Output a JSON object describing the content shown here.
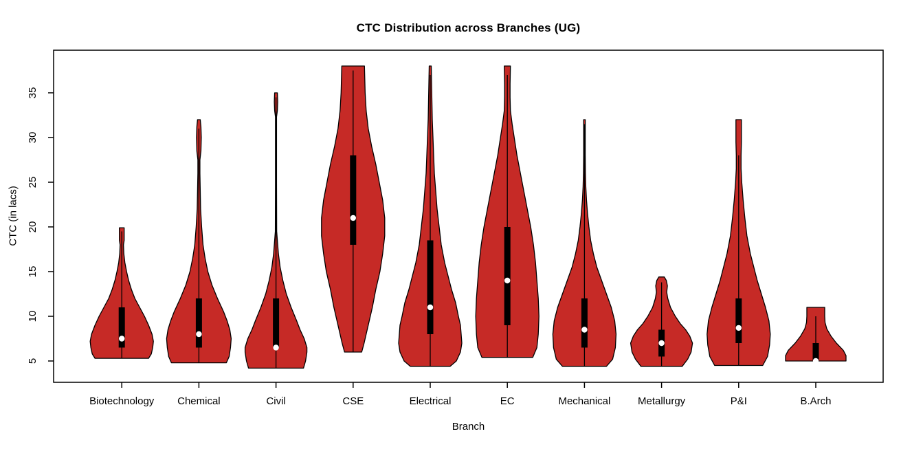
{
  "title": "CTC Distribution across Branches (UG)",
  "chart_data": {
    "type": "violin",
    "title": "CTC Distribution across Branches (UG)",
    "xlabel": "Branch",
    "ylabel": "CTC (in lacs)",
    "categories": [
      "Biotechnology",
      "Chemical",
      "Civil",
      "CSE",
      "Electrical",
      "EC",
      "Mechanical",
      "Metallurgy",
      "P&I",
      "B.Arch"
    ],
    "yticks": [
      5,
      10,
      15,
      20,
      25,
      30,
      35
    ],
    "ylim": [
      2.6,
      39.8
    ],
    "grid": false,
    "legend": "none",
    "fill_color": "#C62A26",
    "outline_color": "#000000",
    "box_color": "#000000",
    "median_color": "#ffffff",
    "violins": [
      {
        "name": "Biotechnology",
        "min": 5.3,
        "q1": 6.5,
        "median": 7.5,
        "q3": 11,
        "max": 20,
        "line_top": 19.5,
        "profile": [
          [
            5.3,
            39
          ],
          [
            5.8,
            43
          ],
          [
            6.5,
            45
          ],
          [
            7.2,
            46
          ],
          [
            8,
            44
          ],
          [
            9,
            39
          ],
          [
            10,
            33
          ],
          [
            11,
            26
          ],
          [
            12,
            19
          ],
          [
            13,
            14
          ],
          [
            14,
            10
          ],
          [
            15,
            7
          ],
          [
            16,
            4.5
          ],
          [
            17,
            3
          ],
          [
            18,
            2.5
          ],
          [
            18.5,
            3.5
          ],
          [
            19.9,
            3.5
          ]
        ]
      },
      {
        "name": "Chemical",
        "min": 4.8,
        "q1": 6.5,
        "median": 8,
        "q3": 12,
        "max": 32,
        "line_top": 31,
        "profile": [
          [
            4.8,
            40
          ],
          [
            5.5,
            44
          ],
          [
            6.5,
            46
          ],
          [
            7.5,
            47
          ],
          [
            8.5,
            45
          ],
          [
            9.5,
            41
          ],
          [
            10.5,
            36
          ],
          [
            12,
            27
          ],
          [
            13.5,
            19
          ],
          [
            15,
            13
          ],
          [
            16.5,
            9
          ],
          [
            18,
            6
          ],
          [
            20,
            4
          ],
          [
            22,
            2.5
          ],
          [
            24,
            2
          ],
          [
            26,
            1.5
          ],
          [
            27.5,
            1.5
          ],
          [
            28.5,
            3
          ],
          [
            30,
            3.5
          ],
          [
            31.2,
            3
          ],
          [
            32,
            2
          ]
        ]
      },
      {
        "name": "Civil",
        "min": 4.2,
        "q1": 6.5,
        "median": 6.5,
        "q3": 12,
        "max": 35,
        "line_top": 34.5,
        "profile": [
          [
            4.2,
            40
          ],
          [
            5,
            43
          ],
          [
            6,
            45
          ],
          [
            6.5,
            45
          ],
          [
            7.5,
            41
          ],
          [
            8.5,
            35
          ],
          [
            9.5,
            30
          ],
          [
            11,
            22
          ],
          [
            12.5,
            15
          ],
          [
            14,
            10
          ],
          [
            15.5,
            6
          ],
          [
            17,
            3.5
          ],
          [
            18.5,
            2
          ],
          [
            19.5,
            1
          ],
          [
            25,
            0.8
          ],
          [
            32.3,
            0.8
          ],
          [
            33,
            2
          ],
          [
            34,
            2.5
          ],
          [
            35,
            2
          ]
        ]
      },
      {
        "name": "CSE",
        "min": 6,
        "q1": 18,
        "median": 21,
        "q3": 28,
        "max": 38,
        "line_top": 37.5,
        "profile": [
          [
            6,
            12.5
          ],
          [
            7,
            16
          ],
          [
            9,
            22
          ],
          [
            11,
            28
          ],
          [
            13,
            33
          ],
          [
            15,
            39
          ],
          [
            17,
            43
          ],
          [
            19,
            46
          ],
          [
            21,
            46
          ],
          [
            23,
            43
          ],
          [
            25,
            38
          ],
          [
            27,
            33
          ],
          [
            29,
            27
          ],
          [
            31,
            22
          ],
          [
            33,
            19
          ],
          [
            35,
            17.5
          ],
          [
            38,
            16.5
          ]
        ]
      },
      {
        "name": "Electrical",
        "min": 4.4,
        "q1": 8,
        "median": 11,
        "q3": 18.5,
        "max": 38,
        "line_top": 37,
        "profile": [
          [
            4.4,
            29
          ],
          [
            5,
            38
          ],
          [
            6,
            44
          ],
          [
            7,
            46
          ],
          [
            8,
            45
          ],
          [
            9,
            44
          ],
          [
            10,
            41
          ],
          [
            11.5,
            37
          ],
          [
            13,
            31
          ],
          [
            14.5,
            26
          ],
          [
            16,
            21
          ],
          [
            18,
            16
          ],
          [
            20,
            13
          ],
          [
            22,
            10
          ],
          [
            24,
            8
          ],
          [
            26,
            6
          ],
          [
            28,
            5
          ],
          [
            30,
            4
          ],
          [
            32,
            3
          ],
          [
            34,
            2.5
          ],
          [
            36,
            2
          ],
          [
            38,
            1.5
          ]
        ]
      },
      {
        "name": "EC",
        "min": 5.4,
        "q1": 9,
        "median": 14,
        "q3": 20,
        "max": 38,
        "line_top": 37,
        "profile": [
          [
            5.4,
            37
          ],
          [
            6.5,
            43
          ],
          [
            8,
            45
          ],
          [
            10,
            46
          ],
          [
            12,
            45
          ],
          [
            14,
            43
          ],
          [
            16,
            41
          ],
          [
            18,
            38
          ],
          [
            20,
            34
          ],
          [
            22,
            29
          ],
          [
            24,
            24
          ],
          [
            26,
            19
          ],
          [
            28,
            14
          ],
          [
            30,
            10
          ],
          [
            31.5,
            7
          ],
          [
            33,
            4.5
          ],
          [
            34.5,
            4
          ],
          [
            36,
            4
          ],
          [
            38,
            4.5
          ]
        ]
      },
      {
        "name": "Mechanical",
        "min": 4.4,
        "q1": 6.5,
        "median": 8.5,
        "q3": 12,
        "max": 32,
        "line_top": 31.5,
        "profile": [
          [
            4.4,
            32
          ],
          [
            5.2,
            41
          ],
          [
            6.5,
            45
          ],
          [
            8,
            46
          ],
          [
            9.5,
            44
          ],
          [
            11,
            39
          ],
          [
            12.5,
            32
          ],
          [
            14,
            25
          ],
          [
            15.5,
            18
          ],
          [
            17,
            13
          ],
          [
            18.5,
            9
          ],
          [
            20,
            6.5
          ],
          [
            21.5,
            4.5
          ],
          [
            23,
            3
          ],
          [
            24.5,
            2
          ],
          [
            26,
            1.5
          ],
          [
            28,
            1.2
          ],
          [
            30,
            1.2
          ],
          [
            32,
            1.2
          ]
        ]
      },
      {
        "name": "Metallurgy",
        "min": 4.4,
        "q1": 5.5,
        "median": 7,
        "q3": 8.5,
        "max": 14.4,
        "line_top": 13.8,
        "profile": [
          [
            4.4,
            30
          ],
          [
            5.2,
            38
          ],
          [
            6,
            43
          ],
          [
            7,
            45
          ],
          [
            7.8,
            41
          ],
          [
            8.5,
            35
          ],
          [
            9.2,
            27
          ],
          [
            10,
            20
          ],
          [
            11,
            13
          ],
          [
            12,
            9
          ],
          [
            12.7,
            7.5
          ],
          [
            13.4,
            8.5
          ],
          [
            14,
            7
          ],
          [
            14.4,
            4
          ]
        ]
      },
      {
        "name": "P&I",
        "min": 4.5,
        "q1": 7,
        "median": 8.7,
        "q3": 12,
        "max": 32,
        "line_top": 28,
        "profile": [
          [
            4.5,
            35
          ],
          [
            5.5,
            42
          ],
          [
            6.8,
            45
          ],
          [
            8,
            46
          ],
          [
            9.5,
            44
          ],
          [
            11,
            39
          ],
          [
            12.5,
            33
          ],
          [
            14,
            27
          ],
          [
            15.5,
            22
          ],
          [
            17,
            17
          ],
          [
            19,
            12
          ],
          [
            21,
            9
          ],
          [
            23,
            6.5
          ],
          [
            25,
            4.5
          ],
          [
            26.5,
            3.5
          ],
          [
            28,
            3.5
          ],
          [
            29.5,
            4
          ],
          [
            31,
            4
          ],
          [
            32,
            4
          ]
        ]
      },
      {
        "name": "B.Arch",
        "min": 5,
        "q1": 5,
        "median": 5,
        "q3": 7,
        "max": 11,
        "line_top": 10,
        "profile": [
          [
            5,
            44
          ],
          [
            5.6,
            44
          ],
          [
            6.2,
            40
          ],
          [
            7,
            30
          ],
          [
            7.8,
            22
          ],
          [
            8.6,
            16
          ],
          [
            9.3,
            13.5
          ],
          [
            10,
            13
          ],
          [
            11,
            13
          ]
        ]
      }
    ]
  }
}
